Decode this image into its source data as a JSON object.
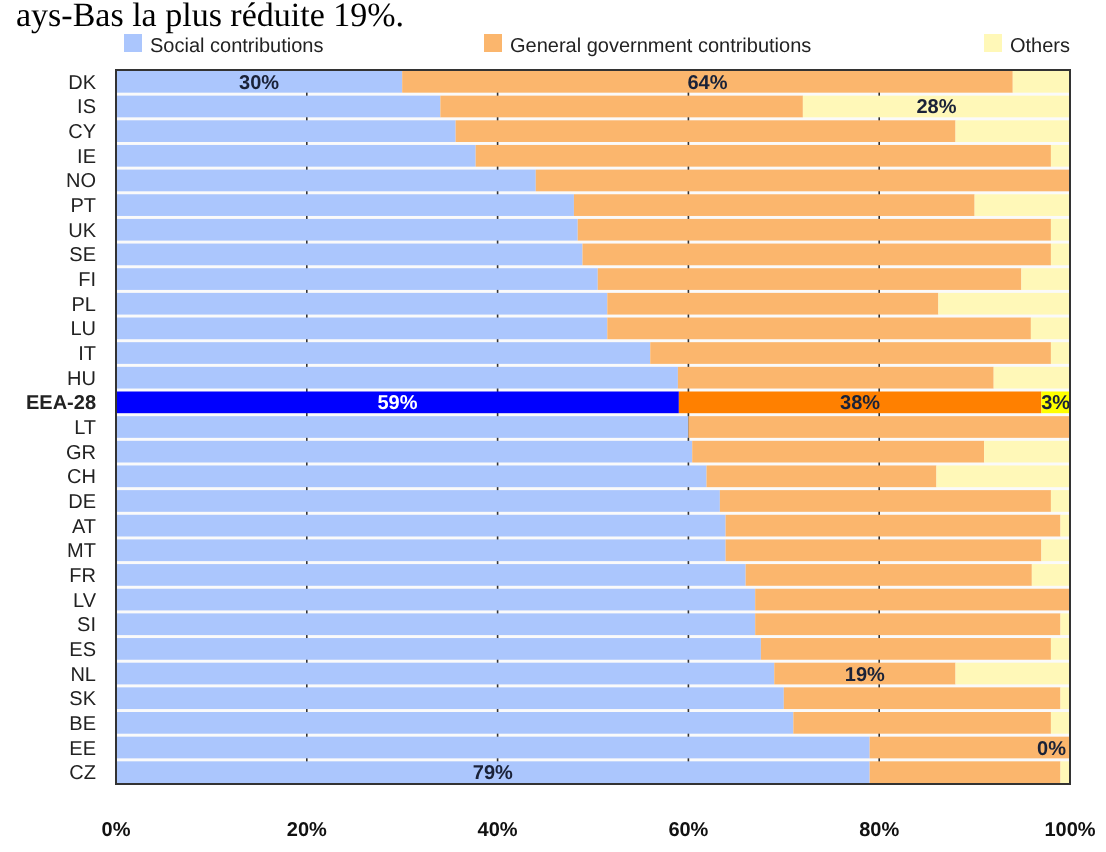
{
  "chart_data": {
    "type": "bar",
    "orientation": "horizontal",
    "stacked": true,
    "annotations": [
      "ays-Bas la plus réduite 19%."
    ],
    "categories": [
      "DK",
      "IS",
      "CY",
      "IE",
      "NO",
      "PT",
      "UK",
      "SE",
      "FI",
      "PL",
      "LU",
      "IT",
      "HU",
      "EEA-28",
      "LT",
      "GR",
      "CH",
      "DE",
      "AT",
      "MT",
      "FR",
      "LV",
      "SI",
      "ES",
      "NL",
      "SK",
      "BE",
      "EE",
      "CZ"
    ],
    "series": [
      {
        "name": "Social contributions",
        "color": "#abc6fd",
        "colors": [
          "#abc6fd",
          "#abc6fd",
          "#abc6fd",
          "#abc6fd",
          "#abc6fd",
          "#abc6fd",
          "#abc6fd",
          "#abc6fd",
          "#abc6fd",
          "#abc6fd",
          "#abc6fd",
          "#abc6fd",
          "#abc6fd",
          "#0000ff",
          "#abc6fd",
          "#abc6fd",
          "#abc6fd",
          "#abc6fd",
          "#abc6fd",
          "#abc6fd",
          "#abc6fd",
          "#abc6fd",
          "#abc6fd",
          "#abc6fd",
          "#abc6fd",
          "#abc6fd",
          "#abc6fd",
          "#abc6fd",
          "#abc6fd"
        ],
        "values": [
          30,
          34,
          35.6,
          37.7,
          44,
          48,
          48.4,
          48.9,
          50.5,
          51.5,
          51.5,
          56,
          58.9,
          59,
          60,
          60.4,
          61.9,
          63.3,
          63.9,
          63.9,
          66,
          67,
          67,
          67.6,
          69,
          70,
          71,
          79,
          79
        ],
        "value_labels": [
          "30%",
          null,
          null,
          null,
          null,
          null,
          null,
          null,
          null,
          null,
          null,
          null,
          null,
          "59%",
          null,
          null,
          null,
          null,
          null,
          null,
          null,
          null,
          null,
          null,
          null,
          null,
          null,
          null,
          "79%"
        ]
      },
      {
        "name": "General government contributions",
        "color": "#fbb66d",
        "colors": [
          "#fbb66d",
          "#fbb66d",
          "#fbb66d",
          "#fbb66d",
          "#fbb66d",
          "#fbb66d",
          "#fbb66d",
          "#fbb66d",
          "#fbb66d",
          "#fbb66d",
          "#fbb66d",
          "#fbb66d",
          "#fbb66d",
          "#ff8000",
          "#fbb66d",
          "#fbb66d",
          "#fbb66d",
          "#fbb66d",
          "#fbb66d",
          "#fbb66d",
          "#fbb66d",
          "#fbb66d",
          "#fbb66d",
          "#fbb66d",
          "#fbb66d",
          "#fbb66d",
          "#fbb66d",
          "#fbb66d",
          "#fbb66d"
        ],
        "values": [
          64,
          38,
          52.4,
          60.3,
          56,
          42,
          49.6,
          49.1,
          44.4,
          34.7,
          44.4,
          42,
          33.1,
          38,
          40,
          30.6,
          24.1,
          34.7,
          35.1,
          33.1,
          30,
          33,
          32,
          30.4,
          19,
          29,
          27,
          21,
          20
        ],
        "value_labels": [
          "64%",
          null,
          null,
          null,
          null,
          null,
          null,
          null,
          null,
          null,
          null,
          null,
          null,
          "38%",
          null,
          null,
          null,
          null,
          null,
          null,
          null,
          null,
          null,
          null,
          "19%",
          null,
          null,
          null,
          null
        ]
      },
      {
        "name": "Others",
        "color": "#fff8b8",
        "colors": [
          "#fff8b8",
          "#fff8b8",
          "#fff8b8",
          "#fff8b8",
          "#fff8b8",
          "#fff8b8",
          "#fff8b8",
          "#fff8b8",
          "#fff8b8",
          "#fff8b8",
          "#fff8b8",
          "#fff8b8",
          "#fff8b8",
          "#ffff00",
          "#fff8b8",
          "#fff8b8",
          "#fff8b8",
          "#fff8b8",
          "#fff8b8",
          "#fff8b8",
          "#fff8b8",
          "#fff8b8",
          "#fff8b8",
          "#fff8b8",
          "#fff8b8",
          "#fff8b8",
          "#fff8b8",
          "#fff8b8",
          "#fff8b8"
        ],
        "values": [
          6,
          28,
          12,
          2,
          0,
          10,
          2,
          2,
          5.1,
          13.8,
          4.1,
          2,
          8,
          3,
          0,
          9,
          14,
          2,
          1,
          3,
          4,
          0,
          1,
          2,
          12,
          1,
          2,
          0,
          1
        ],
        "value_labels": [
          null,
          "28%",
          null,
          null,
          null,
          null,
          null,
          null,
          null,
          null,
          null,
          null,
          null,
          "3%",
          null,
          null,
          null,
          null,
          null,
          null,
          null,
          null,
          null,
          null,
          null,
          null,
          null,
          "0%",
          null
        ]
      }
    ],
    "xlim": [
      0,
      100
    ],
    "xticks": [
      {
        "value": 0,
        "label": "0%"
      },
      {
        "value": 20,
        "label": "20%"
      },
      {
        "value": 40,
        "label": "40%"
      },
      {
        "value": 60,
        "label": "60%"
      },
      {
        "value": 80,
        "label": "80%"
      },
      {
        "value": 100,
        "label": "100%"
      }
    ],
    "grid": "x",
    "legend": "top"
  }
}
